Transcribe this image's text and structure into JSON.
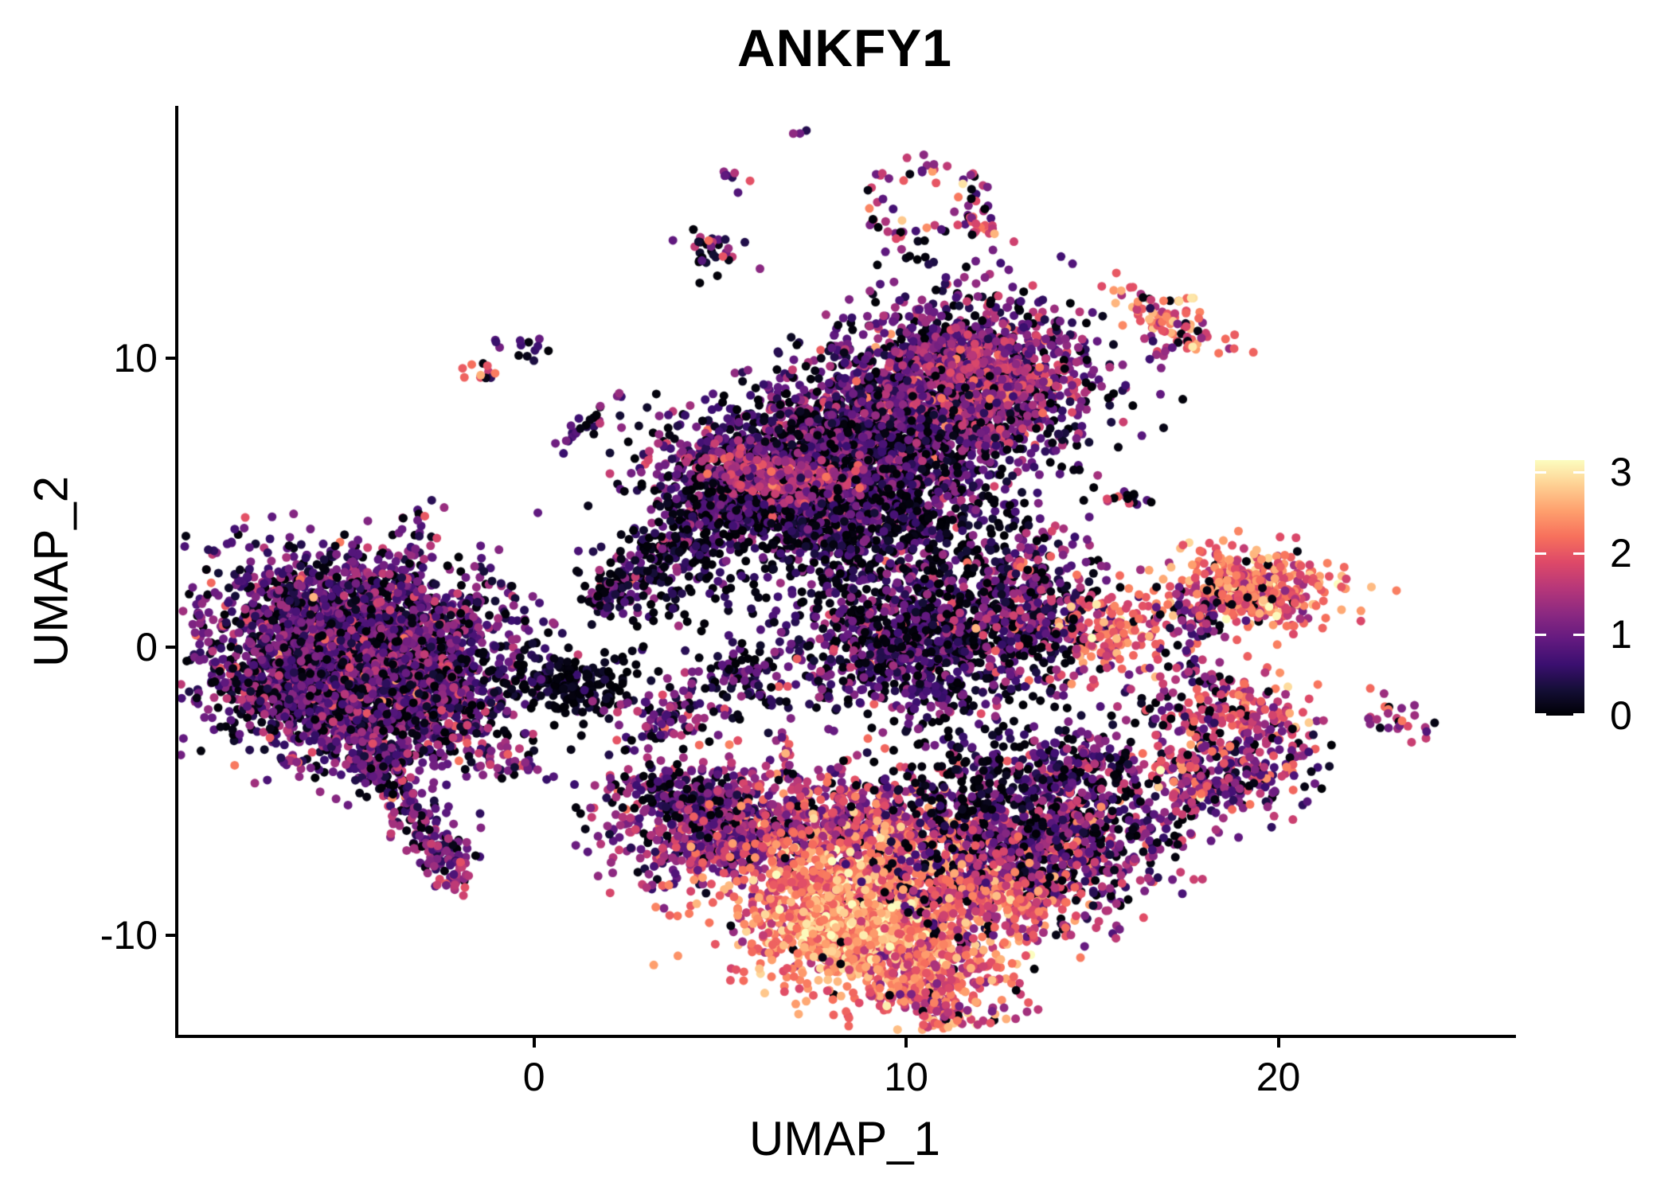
{
  "title": "ANKFY1",
  "axes": {
    "x": {
      "label": "UMAP_1",
      "ticks": [
        0,
        10,
        20
      ],
      "lim": [
        -9.6,
        26.3
      ]
    },
    "y": {
      "label": "UMAP_2",
      "ticks": [
        -10,
        0,
        10
      ],
      "lim": [
        -13.5,
        18.7
      ]
    }
  },
  "legend": {
    "ticks": [
      0,
      1,
      2,
      3
    ],
    "max": 3.15
  },
  "chart_data": {
    "type": "scatter",
    "title": "ANKFY1",
    "xlabel": "UMAP_1",
    "ylabel": "UMAP_2",
    "xlim": [
      -9.6,
      26.3
    ],
    "ylim": [
      -13.5,
      18.7
    ],
    "grid": false,
    "legend_position": "right",
    "legend_title": "",
    "legend_ticks": [
      0,
      1,
      2,
      3
    ],
    "color_domain": [
      0,
      3.15
    ],
    "colormap_stops": [
      "#000004",
      "#140e36",
      "#3b0f70",
      "#641a80",
      "#8c2981",
      "#b73779",
      "#de4968",
      "#f7705c",
      "#fe9f6d",
      "#fecf92",
      "#fcfdbf"
    ],
    "point_radius_px": 5.5,
    "seed": 42,
    "clusters": [
      {
        "name": "left-main-upper",
        "shape": "gauss",
        "cx": -4.8,
        "cy": 0.5,
        "sx": 2.0,
        "sy": 1.35,
        "rot": -8,
        "n": 2100,
        "m": 0.95,
        "s": 0.5,
        "z": 0.17
      },
      {
        "name": "left-main-lower",
        "shape": "gauss",
        "cx": -4.0,
        "cy": -2.0,
        "sx": 1.6,
        "sy": 1.15,
        "rot": 0,
        "n": 1200,
        "m": 0.9,
        "s": 0.55,
        "z": 0.2
      },
      {
        "name": "left-west-bulge",
        "shape": "gauss",
        "cx": -6.8,
        "cy": -1.4,
        "sx": 1.0,
        "sy": 0.9,
        "rot": 0,
        "n": 350,
        "m": 0.85,
        "s": 0.5,
        "z": 0.2
      },
      {
        "name": "left-tail",
        "shape": "line",
        "x1": -4.6,
        "y1": -3.2,
        "x2": -2.2,
        "y2": -7.7,
        "j": 0.38,
        "n": 240,
        "m": 1.0,
        "s": 0.5,
        "z": 0.15
      },
      {
        "name": "left-tail-tip",
        "shape": "gauss",
        "cx": -2.15,
        "cy": -8.0,
        "sx": 0.35,
        "sy": 0.3,
        "rot": 0,
        "n": 30,
        "m": 1.3,
        "s": 0.5,
        "z": 0.1
      },
      {
        "name": "southwest-dots",
        "shape": "gauss",
        "cx": -6.5,
        "cy": -4.0,
        "sx": 0.28,
        "sy": 0.2,
        "rot": 0,
        "n": 10,
        "m": 1.3,
        "s": 0.5,
        "z": 0.1
      },
      {
        "name": "left-south-small",
        "shape": "gauss",
        "cx": -0.5,
        "cy": -4.1,
        "sx": 0.6,
        "sy": 0.3,
        "rot": -12,
        "n": 30,
        "m": 1.1,
        "s": 0.55,
        "z": 0.12
      },
      {
        "name": "left-mid-small",
        "shape": "gauss",
        "cx": -3.1,
        "cy": 4.3,
        "sx": 0.4,
        "sy": 0.33,
        "rot": 40,
        "n": 14,
        "m": 0.9,
        "s": 0.6,
        "z": 0.15
      },
      {
        "name": "nw-pair-bright",
        "shape": "gauss",
        "cx": -1.4,
        "cy": 9.6,
        "sx": 0.33,
        "sy": 0.22,
        "rot": -20,
        "n": 11,
        "m": 1.8,
        "s": 0.45,
        "z": 0.05
      },
      {
        "name": "nw-pair-dark",
        "shape": "gauss",
        "cx": -0.25,
        "cy": 10.35,
        "sx": 0.38,
        "sy": 0.22,
        "rot": -10,
        "n": 13,
        "m": 0.85,
        "s": 0.4,
        "z": 0.15
      },
      {
        "name": "nw-chain",
        "shape": "line",
        "x1": 0.6,
        "y1": 7.0,
        "x2": 2.6,
        "y2": 8.8,
        "j": 0.2,
        "n": 26,
        "m": 0.8,
        "s": 0.55,
        "z": 0.2
      },
      {
        "name": "top-tiny",
        "shape": "gauss",
        "cx": 5.4,
        "cy": 16.3,
        "sx": 0.25,
        "sy": 0.25,
        "rot": 0,
        "n": 7,
        "m": 1.0,
        "s": 0.6,
        "z": 0.15
      },
      {
        "name": "top-small",
        "shape": "gauss",
        "cx": 4.65,
        "cy": 13.7,
        "sx": 0.5,
        "sy": 0.42,
        "rot": 10,
        "n": 34,
        "m": 0.95,
        "s": 0.55,
        "z": 0.15
      },
      {
        "name": "top-dot-pair",
        "shape": "gauss",
        "cx": 7.2,
        "cy": 17.9,
        "sx": 0.16,
        "sy": 0.12,
        "rot": 0,
        "n": 3,
        "m": 0.9,
        "s": 0.4,
        "z": 0.1
      },
      {
        "name": "top-ring",
        "shape": "ring",
        "cx": 10.6,
        "cy": 15.4,
        "r": 1.45,
        "ry": 1.3,
        "w": 0.3,
        "n": 66,
        "m": 1.25,
        "s": 0.75,
        "z": 0.13
      },
      {
        "name": "top-ring-tail",
        "shape": "line",
        "x1": 11.5,
        "y1": 15.1,
        "x2": 12.4,
        "y2": 14.35,
        "j": 0.14,
        "n": 14,
        "m": 1.9,
        "s": 0.4,
        "z": 0.05
      },
      {
        "name": "top-ring-below-dots",
        "shape": "gauss",
        "cx": 10.7,
        "cy": 13.4,
        "sx": 0.3,
        "sy": 0.2,
        "rot": 0,
        "n": 4,
        "m": 0.3,
        "s": 0.3,
        "z": 0.4
      },
      {
        "name": "ne-bright",
        "shape": "gauss",
        "cx": 17.0,
        "cy": 11.4,
        "sx": 0.95,
        "sy": 0.38,
        "rot": -38,
        "n": 90,
        "m": 2.1,
        "s": 0.45,
        "z": 0.07
      },
      {
        "name": "ne-bright-tail",
        "shape": "line",
        "x1": 16.5,
        "y1": 10.6,
        "x2": 17.2,
        "y2": 10.1,
        "j": 0.15,
        "n": 8,
        "m": 1.4,
        "s": 0.5,
        "z": 0.15
      },
      {
        "name": "center-round-lobe",
        "shape": "gauss",
        "cx": 11.5,
        "cy": 9.3,
        "sx": 1.75,
        "sy": 1.5,
        "rot": 0,
        "n": 1500,
        "m": 1.0,
        "s": 0.55,
        "z": 0.12
      },
      {
        "name": "center-round-bright",
        "shape": "gauss",
        "cx": 12.1,
        "cy": 9.1,
        "sx": 1.0,
        "sy": 0.9,
        "rot": 0,
        "n": 280,
        "m": 1.5,
        "s": 0.4,
        "z": 0.05
      },
      {
        "name": "center-main",
        "shape": "gauss",
        "cx": 8.3,
        "cy": 6.3,
        "sx": 1.9,
        "sy": 1.5,
        "rot": 0,
        "n": 2100,
        "m": 0.8,
        "s": 0.5,
        "z": 0.22
      },
      {
        "name": "center-left-arm",
        "shape": "gauss",
        "cx": 5.8,
        "cy": 5.5,
        "sx": 1.3,
        "sy": 0.95,
        "rot": -20,
        "n": 650,
        "m": 0.75,
        "s": 0.5,
        "z": 0.25
      },
      {
        "name": "center-magenta-streak",
        "shape": "gauss",
        "cx": 6.7,
        "cy": 5.9,
        "sx": 1.1,
        "sy": 0.4,
        "rot": -12,
        "n": 220,
        "m": 1.6,
        "s": 0.35,
        "z": 0.03
      },
      {
        "name": "center-funnel",
        "shape": "line",
        "x1": 2.0,
        "y1": 1.8,
        "x2": 5.2,
        "y2": 4.8,
        "j": 0.5,
        "n": 230,
        "m": 0.7,
        "s": 0.5,
        "z": 0.28
      },
      {
        "name": "center-funnel-tip",
        "shape": "line",
        "x1": 1.55,
        "y1": 1.5,
        "x2": 2.2,
        "y2": 2.1,
        "j": 0.15,
        "n": 45,
        "m": 0.9,
        "s": 0.5,
        "z": 0.15
      },
      {
        "name": "center-below-sparse",
        "shape": "gauss",
        "cx": 3.9,
        "cy": 2.2,
        "sx": 1.2,
        "sy": 1.1,
        "rot": 0,
        "n": 110,
        "m": 0.35,
        "s": 0.35,
        "z": 0.45
      },
      {
        "name": "center-mid-sparse",
        "shape": "gauss",
        "cx": 9.6,
        "cy": 3.6,
        "sx": 1.7,
        "sy": 1.15,
        "rot": 0,
        "n": 320,
        "m": 0.5,
        "s": 0.5,
        "z": 0.4
      },
      {
        "name": "center-lower-lobe",
        "shape": "gauss",
        "cx": 10.4,
        "cy": 0.1,
        "sx": 1.9,
        "sy": 1.3,
        "rot": -5,
        "n": 1100,
        "m": 0.75,
        "s": 0.55,
        "z": 0.25
      },
      {
        "name": "center-right-ext",
        "shape": "gauss",
        "cx": 13.3,
        "cy": 2.0,
        "sx": 1.05,
        "sy": 1.1,
        "rot": 0,
        "n": 330,
        "m": 0.95,
        "s": 0.6,
        "z": 0.2
      },
      {
        "name": "center-small-deep",
        "shape": "gauss",
        "cx": 5.3,
        "cy": -0.9,
        "sx": 0.55,
        "sy": 0.5,
        "rot": 0,
        "n": 60,
        "m": 0.65,
        "s": 0.5,
        "z": 0.3
      },
      {
        "name": "center-small-chain",
        "shape": "line",
        "x1": 5.7,
        "y1": -1.5,
        "x2": 6.6,
        "y2": -2.1,
        "j": 0.12,
        "n": 12,
        "m": 0.7,
        "s": 0.4,
        "z": 0.2
      },
      {
        "name": "dark-blob",
        "shape": "gauss",
        "cx": 1.3,
        "cy": -1.3,
        "sx": 0.7,
        "sy": 0.55,
        "rot": 0,
        "n": 150,
        "m": 0.15,
        "s": 0.22,
        "z": 0.5
      },
      {
        "name": "dark-blob-bridge",
        "shape": "line",
        "x1": -0.9,
        "y1": -0.9,
        "x2": 0.7,
        "y2": -1.2,
        "j": 0.45,
        "n": 55,
        "m": 0.45,
        "s": 0.4,
        "z": 0.4
      },
      {
        "name": "small-west-of-bottom",
        "shape": "gauss",
        "cx": 3.5,
        "cy": -2.4,
        "sx": 0.68,
        "sy": 0.5,
        "rot": 20,
        "n": 90,
        "m": 1.1,
        "s": 0.55,
        "z": 0.13
      },
      {
        "name": "mid-chain-vert",
        "shape": "line",
        "x1": 6.8,
        "y1": -3.0,
        "x2": 6.7,
        "y2": -4.5,
        "j": 0.14,
        "n": 16,
        "m": 1.3,
        "s": 0.55,
        "z": 0.1
      },
      {
        "name": "bottom-left-lobe",
        "shape": "gauss",
        "cx": 5.0,
        "cy": -6.4,
        "sx": 1.5,
        "sy": 1.05,
        "rot": -18,
        "n": 700,
        "m": 1.25,
        "s": 0.5,
        "z": 0.1
      },
      {
        "name": "bottom-left-top-edge",
        "shape": "gauss",
        "cx": 4.1,
        "cy": -5.2,
        "sx": 0.9,
        "sy": 0.5,
        "rot": -20,
        "n": 120,
        "m": 0.7,
        "s": 0.4,
        "z": 0.3
      },
      {
        "name": "bottom-mid-band",
        "shape": "gauss",
        "cx": 9.4,
        "cy": -6.3,
        "sx": 2.0,
        "sy": 0.95,
        "rot": -8,
        "n": 700,
        "m": 1.6,
        "s": 0.5,
        "z": 0.07
      },
      {
        "name": "bottom-bright-core",
        "shape": "gauss",
        "cx": 9.0,
        "cy": -9.2,
        "sx": 1.9,
        "sy": 1.35,
        "rot": -10,
        "n": 1350,
        "m": 2.25,
        "s": 0.4,
        "z": 0.02
      },
      {
        "name": "bottom-bright-peak",
        "shape": "gauss",
        "cx": 8.5,
        "cy": -9.9,
        "sx": 1.0,
        "sy": 0.7,
        "rot": -10,
        "n": 320,
        "m": 2.6,
        "s": 0.3,
        "z": 0.01
      },
      {
        "name": "bottom-right-lobe",
        "shape": "gauss",
        "cx": 13.6,
        "cy": -6.9,
        "sx": 1.75,
        "sy": 1.3,
        "rot": 12,
        "n": 1050,
        "m": 1.05,
        "s": 0.6,
        "z": 0.17
      },
      {
        "name": "bottom-right-bright",
        "shape": "gauss",
        "cx": 12.4,
        "cy": -8.7,
        "sx": 1.1,
        "sy": 0.6,
        "rot": 0,
        "n": 240,
        "m": 1.9,
        "s": 0.4,
        "z": 0.04
      },
      {
        "name": "bottom-tip",
        "shape": "gauss",
        "cx": 10.6,
        "cy": -11.5,
        "sx": 1.1,
        "sy": 0.7,
        "rot": -22,
        "n": 260,
        "m": 2.0,
        "s": 0.5,
        "z": 0.05
      },
      {
        "name": "bottom-tip-tail",
        "shape": "line",
        "x1": 10.3,
        "y1": -12.2,
        "x2": 11.4,
        "y2": -12.9,
        "j": 0.25,
        "n": 45,
        "m": 1.8,
        "s": 0.45,
        "z": 0.05
      },
      {
        "name": "bottom-above-sparse",
        "shape": "gauss",
        "cx": 12.3,
        "cy": -4.4,
        "sx": 1.6,
        "sy": 0.8,
        "rot": 0,
        "n": 210,
        "m": 0.5,
        "s": 0.5,
        "z": 0.4
      },
      {
        "name": "bottom-right-ext",
        "shape": "gauss",
        "cx": 14.7,
        "cy": -4.3,
        "sx": 0.7,
        "sy": 0.85,
        "rot": 0,
        "n": 90,
        "m": 0.9,
        "s": 0.5,
        "z": 0.2
      },
      {
        "name": "right-orange-small",
        "shape": "gauss",
        "cx": 15.4,
        "cy": 0.5,
        "sx": 0.85,
        "sy": 0.75,
        "rot": 0,
        "n": 160,
        "m": 2.0,
        "s": 0.45,
        "z": 0.07
      },
      {
        "name": "right-orange-west-dots",
        "shape": "line",
        "x1": 13.4,
        "y1": 0.9,
        "x2": 14.5,
        "y2": 0.6,
        "j": 0.3,
        "n": 14,
        "m": 0.9,
        "s": 0.5,
        "z": 0.3
      },
      {
        "name": "right-big-orange",
        "shape": "gauss",
        "cx": 19.3,
        "cy": 2.0,
        "sx": 1.05,
        "sy": 0.68,
        "rot": -8,
        "n": 430,
        "m": 2.15,
        "s": 0.4,
        "z": 0.05
      },
      {
        "name": "right-big-orange-dark-edge",
        "shape": "gauss",
        "cx": 17.9,
        "cy": 1.0,
        "sx": 0.55,
        "sy": 0.45,
        "rot": 0,
        "n": 60,
        "m": 1.2,
        "s": 0.5,
        "z": 0.2
      },
      {
        "name": "right-chain-down",
        "shape": "line",
        "x1": 17.2,
        "y1": -0.1,
        "x2": 18.3,
        "y2": -1.2,
        "j": 0.25,
        "n": 24,
        "m": 0.8,
        "s": 0.5,
        "z": 0.25
      },
      {
        "name": "right-small-chain",
        "shape": "line",
        "x1": 15.3,
        "y1": 5.3,
        "x2": 16.5,
        "y2": 4.85,
        "j": 0.16,
        "n": 16,
        "m": 1.1,
        "s": 0.85,
        "z": 0.2
      },
      {
        "name": "right-complex-upper",
        "shape": "gauss",
        "cx": 19.0,
        "cy": -2.2,
        "sx": 0.95,
        "sy": 0.6,
        "rot": -25,
        "n": 170,
        "m": 1.75,
        "s": 0.45,
        "z": 0.07
      },
      {
        "name": "right-complex-lower",
        "shape": "gauss",
        "cx": 18.7,
        "cy": -4.5,
        "sx": 1.15,
        "sy": 0.8,
        "rot": 15,
        "n": 260,
        "m": 1.1,
        "s": 0.6,
        "z": 0.17
      },
      {
        "name": "right-complex-bright-edge",
        "shape": "gauss",
        "cx": 17.4,
        "cy": -4.1,
        "sx": 0.5,
        "sy": 0.55,
        "rot": 0,
        "n": 55,
        "m": 1.9,
        "s": 0.4,
        "z": 0.05
      },
      {
        "name": "right-mid-chain",
        "shape": "line",
        "x1": 15.7,
        "y1": -1.6,
        "x2": 17.9,
        "y2": -2.7,
        "j": 0.3,
        "n": 30,
        "m": 1.0,
        "s": 0.55,
        "z": 0.2
      },
      {
        "name": "right-bottom-bridge",
        "shape": "line",
        "x1": 14.9,
        "y1": -3.4,
        "x2": 16.4,
        "y2": -4.4,
        "j": 0.35,
        "n": 26,
        "m": 0.8,
        "s": 0.5,
        "z": 0.3
      },
      {
        "name": "far-right-small",
        "shape": "gauss",
        "cx": 23.3,
        "cy": -2.6,
        "sx": 0.62,
        "sy": 0.3,
        "rot": -32,
        "n": 26,
        "m": 1.7,
        "s": 0.5,
        "z": 0.1
      }
    ]
  }
}
